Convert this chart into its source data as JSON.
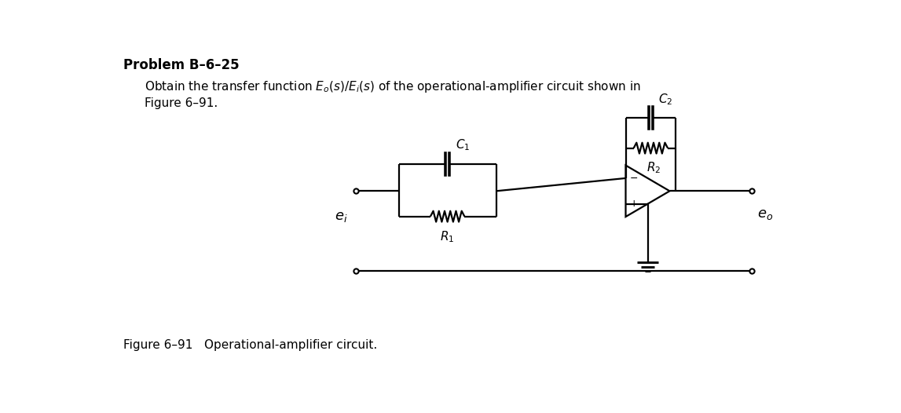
{
  "title": "Problem B–6–25",
  "body_line1": "Obtain the transfer function $E_o(s)/E_i(s)$ of the operational-amplifier circuit shown in",
  "body_line2": "Figure 6–91.",
  "caption": "Figure 6–91   Operational-amplifier circuit.",
  "label_ei": "$e_i$",
  "label_eo": "$e_o$",
  "label_R1": "$R_1$",
  "label_R2": "$R_2$",
  "label_C1": "$C_1$",
  "label_C2": "$C_2$",
  "label_minus": "−",
  "label_plus": "+",
  "bg_color": "#ffffff",
  "lc": "#000000",
  "lw": 1.6,
  "fig_w": 11.47,
  "fig_h": 5.26,
  "dpi": 100
}
